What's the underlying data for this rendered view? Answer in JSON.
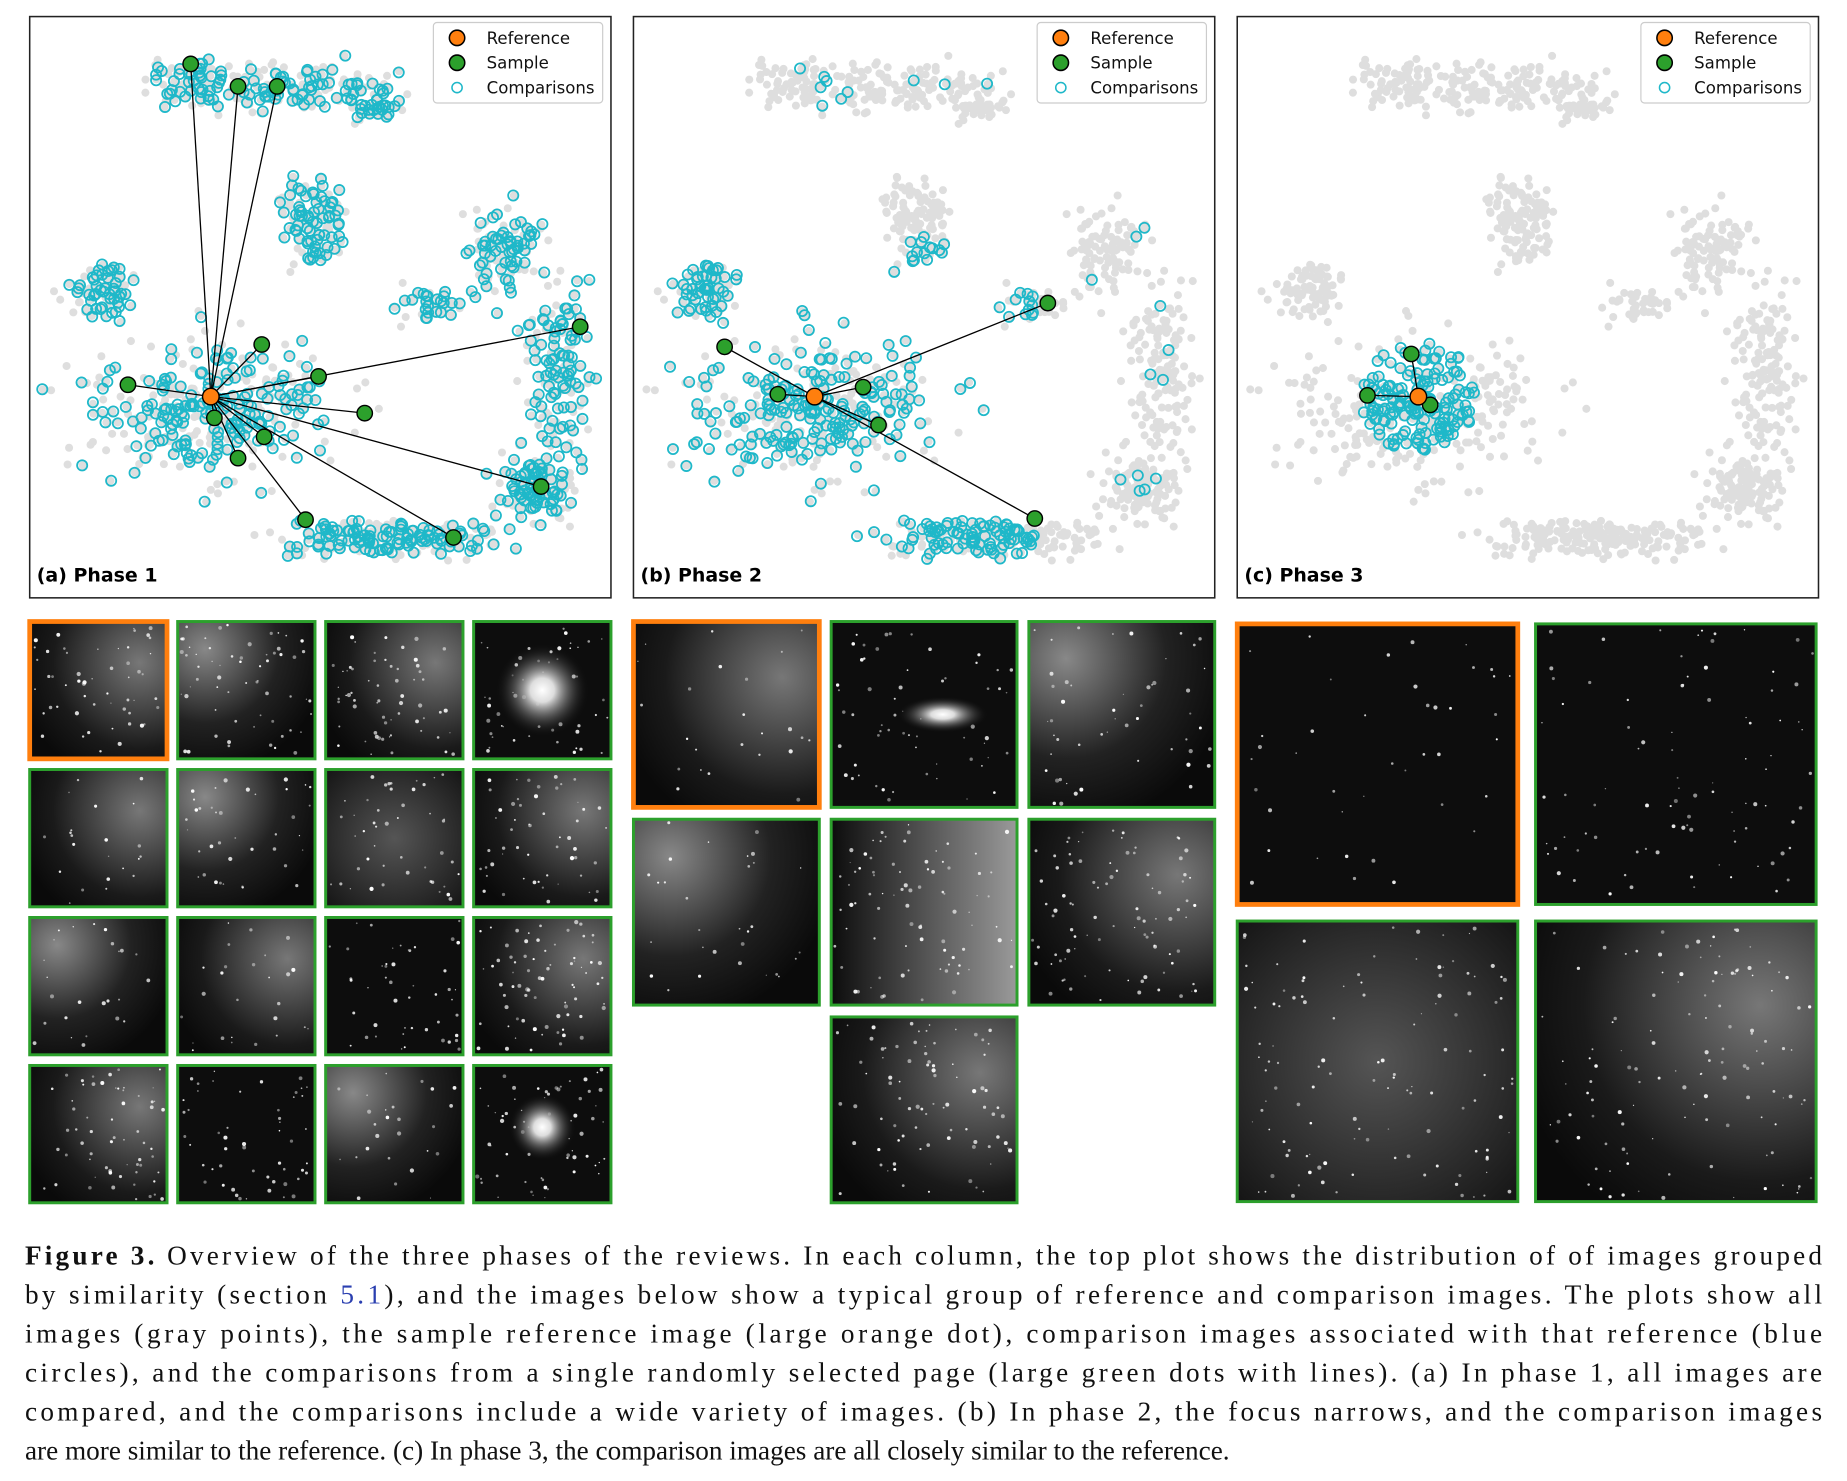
{
  "panels": [
    {
      "label": "(a) Phase 1",
      "legend": [
        "Reference",
        "Sample",
        "Comparisons"
      ]
    },
    {
      "label": "(b) Phase 2",
      "legend": [
        "Reference",
        "Sample",
        "Comparisons"
      ]
    },
    {
      "label": "(c) Phase 3",
      "legend": [
        "Reference",
        "Sample",
        "Comparisons"
      ]
    }
  ],
  "caption": {
    "label": "Figure 3.",
    "lines": [
      [
        "Overview of the three phases of the reviews. In each column, the top plot shows the distribution of of images grouped"
      ],
      [
        "by similarity (section ",
        "5.1",
        "), and the images below show a typical group of reference and comparison images. The plots show all"
      ],
      [
        "images (gray points), the sample reference image (large orange dot), comparison images associated with that reference (blue"
      ],
      [
        "circles), and the comparisons from a single randomly selected page (large green dots with lines). (a) In phase 1, all images are"
      ],
      [
        "compared, and the comparisons include a wide variety of images. (b) In phase 2, the focus narrows, and the comparison images"
      ],
      [
        "are more similar to the reference. (c) In phase 3, the comparison images are all closely similar to the reference."
      ]
    ]
  }
}
